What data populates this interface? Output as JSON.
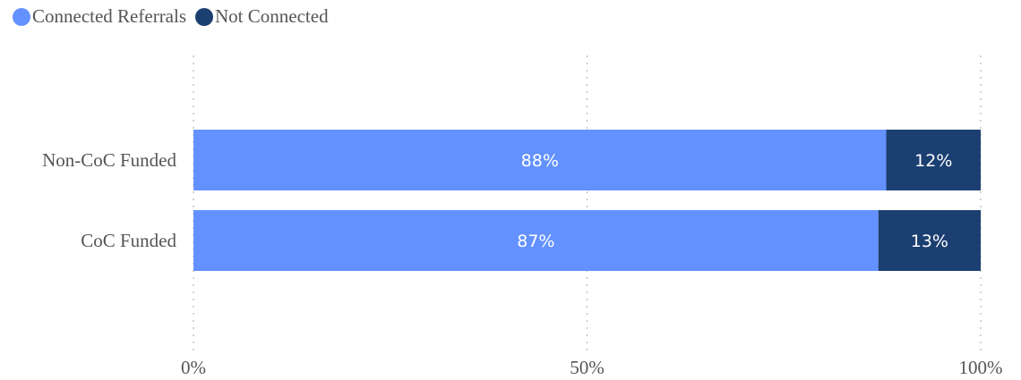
{
  "chart_data": {
    "type": "bar",
    "orientation": "horizontal",
    "stacked": true,
    "categories": [
      "Non-CoC Funded",
      "CoC Funded"
    ],
    "series": [
      {
        "name": "Connected Referrals",
        "color": "#6391FF",
        "values": [
          88,
          87
        ],
        "labels": [
          "88%",
          "87%"
        ]
      },
      {
        "name": "Not Connected",
        "color": "#1C3F72",
        "values": [
          12,
          13
        ],
        "labels": [
          "12%",
          "13%"
        ]
      }
    ],
    "x_ticks": [
      "0%",
      "50%",
      "100%"
    ],
    "x_tick_values": [
      0,
      50,
      100
    ],
    "xlim": [
      0,
      100
    ],
    "title": "",
    "xlabel": "",
    "ylabel": "",
    "grid": "vertical-dotted",
    "legend_position": "top-left"
  }
}
